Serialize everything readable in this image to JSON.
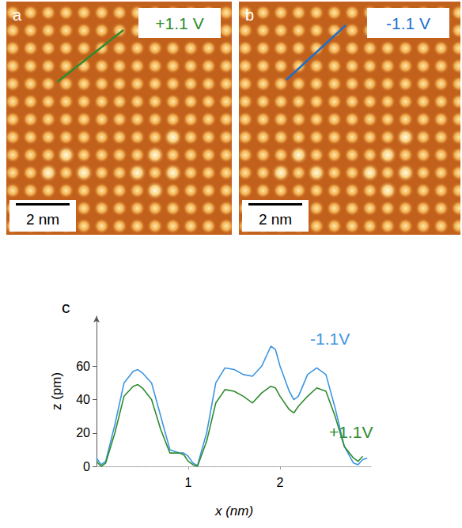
{
  "panels": [
    {
      "letter": "a",
      "bias": "+1.1 V",
      "color": "#2e8b2e",
      "scale_bar": "2 nm"
    },
    {
      "letter": "b",
      "bias": "-1.1 V",
      "color": "#1e6fc8",
      "scale_bar": "2 nm"
    }
  ],
  "chart_data": {
    "type": "line",
    "letter": "c",
    "xlabel": "x (nm)",
    "ylabel": "z (pm)",
    "xlim": [
      0,
      3.0
    ],
    "ylim": [
      0,
      90
    ],
    "xticks": [
      1,
      2
    ],
    "yticks": [
      0,
      20,
      40,
      60
    ],
    "x": [
      0,
      0.05,
      0.1,
      0.2,
      0.3,
      0.4,
      0.45,
      0.5,
      0.6,
      0.7,
      0.8,
      0.9,
      0.95,
      1.0,
      1.05,
      1.1,
      1.2,
      1.3,
      1.4,
      1.5,
      1.6,
      1.7,
      1.8,
      1.9,
      1.95,
      2.0,
      2.1,
      2.15,
      2.2,
      2.3,
      2.4,
      2.5,
      2.6,
      2.7,
      2.8,
      2.85,
      2.9,
      2.95
    ],
    "series": [
      {
        "name": "-1.1V",
        "color": "#3d95e0",
        "values": [
          5,
          1,
          3,
          25,
          50,
          57,
          58,
          56,
          50,
          30,
          10,
          8,
          8,
          6,
          2,
          0.5,
          20,
          50,
          59,
          58,
          55,
          54,
          60,
          72,
          70,
          60,
          45,
          40,
          42,
          55,
          59,
          55,
          35,
          12,
          2,
          1,
          4,
          5
        ]
      },
      {
        "name": "+1.1V",
        "color": "#2e8b2e",
        "values": [
          3,
          0,
          2,
          20,
          42,
          48,
          49,
          47,
          40,
          22,
          8,
          8,
          7,
          3,
          1,
          0,
          15,
          38,
          46,
          45,
          42,
          38,
          44,
          48,
          47,
          42,
          34,
          32,
          36,
          42,
          47,
          45,
          30,
          12,
          5,
          3,
          6,
          null
        ]
      }
    ]
  }
}
